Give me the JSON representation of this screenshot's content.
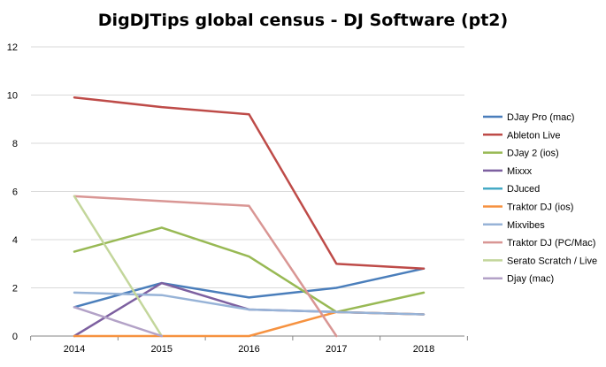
{
  "chart_data": {
    "type": "line",
    "title": "DigDJTips global census - DJ Software (pt2)",
    "xlabel": "",
    "ylabel": "",
    "categories": [
      "2014",
      "2015",
      "2016",
      "2017",
      "2018"
    ],
    "ylim": [
      0,
      12
    ],
    "yticks": [
      0,
      2,
      4,
      6,
      8,
      10,
      12
    ],
    "grid": "horizontal",
    "legend_position": "right",
    "series": [
      {
        "name": "DJay Pro (mac)",
        "color": "#4a7ebb",
        "values": [
          1.2,
          2.2,
          1.6,
          2.0,
          2.8
        ]
      },
      {
        "name": "Ableton Live",
        "color": "#be4b48",
        "values": [
          9.9,
          9.5,
          9.2,
          3.0,
          2.8
        ]
      },
      {
        "name": "DJay 2 (ios)",
        "color": "#98b954",
        "values": [
          3.5,
          4.5,
          3.3,
          1.0,
          1.8
        ]
      },
      {
        "name": "Mixxx",
        "color": "#7d60a0",
        "values": [
          0,
          2.2,
          1.1,
          1.0,
          0.9
        ]
      },
      {
        "name": "DJuced",
        "color": "#46aac5",
        "values": [
          null,
          null,
          null,
          null,
          null
        ]
      },
      {
        "name": "Traktor DJ (ios)",
        "color": "#f69240",
        "values": [
          0,
          0,
          0,
          1.0,
          0.9
        ]
      },
      {
        "name": "Mixvibes",
        "color": "#97b3d7",
        "values": [
          1.8,
          1.7,
          1.1,
          1.0,
          0.9
        ]
      },
      {
        "name": "Traktor DJ (PC/Mac)",
        "color": "#d99694",
        "values": [
          5.8,
          5.6,
          5.4,
          0,
          null
        ]
      },
      {
        "name": "Serato Scratch / Live",
        "color": "#c3d69b",
        "values": [
          5.8,
          0,
          null,
          null,
          null
        ]
      },
      {
        "name": "Djay (mac)",
        "color": "#b3a2c7",
        "values": [
          1.2,
          0,
          null,
          null,
          null
        ]
      }
    ]
  }
}
